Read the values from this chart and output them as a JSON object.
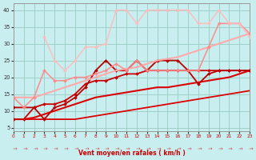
{
  "xlabel": "Vent moyen/en rafales ( km/h )",
  "xlim": [
    0,
    23
  ],
  "ylim": [
    4,
    42
  ],
  "yticks": [
    5,
    10,
    15,
    20,
    25,
    30,
    35,
    40
  ],
  "xticks": [
    0,
    1,
    2,
    3,
    4,
    5,
    6,
    7,
    8,
    9,
    10,
    11,
    12,
    13,
    14,
    15,
    16,
    17,
    18,
    19,
    20,
    21,
    22,
    23
  ],
  "background_color": "#c8eef0",
  "grid_color": "#a0d0c8",
  "lines": [
    {
      "x": [
        0,
        1,
        2,
        3,
        4,
        5,
        6,
        7,
        8,
        9,
        10,
        11,
        12,
        13,
        14,
        15,
        16,
        17,
        18,
        19,
        20,
        21,
        22,
        23
      ],
      "y": [
        7.5,
        7.5,
        7.5,
        7.5,
        7.5,
        7.5,
        7.5,
        8,
        8.5,
        9,
        9.5,
        10,
        10.5,
        11,
        11.5,
        12,
        12.5,
        13,
        13.5,
        14,
        14.5,
        15,
        15.5,
        16
      ],
      "color": "#dd0000",
      "lw": 1.3,
      "marker": null,
      "linestyle": "-",
      "alpha": 1.0
    },
    {
      "x": [
        0,
        1,
        2,
        3,
        4,
        5,
        6,
        7,
        8,
        9,
        10,
        11,
        12,
        13,
        14,
        15,
        16,
        17,
        18,
        19,
        20,
        21,
        22,
        23
      ],
      "y": [
        7.5,
        7.5,
        8,
        9,
        10,
        11,
        12,
        13,
        14,
        14.5,
        15,
        15.5,
        16,
        16.5,
        17,
        17,
        17.5,
        18,
        18.5,
        19,
        19.5,
        20,
        21,
        22
      ],
      "color": "#dd0000",
      "lw": 1.5,
      "marker": null,
      "linestyle": "-",
      "alpha": 1.0
    },
    {
      "x": [
        0,
        1,
        2,
        3,
        4,
        5,
        6,
        7,
        8,
        9,
        10,
        11,
        12,
        13,
        14,
        15,
        16,
        17,
        18,
        19,
        20,
        21,
        22,
        23
      ],
      "y": [
        7.5,
        7.5,
        11,
        12,
        12,
        13,
        15,
        18,
        19,
        19,
        20,
        21,
        21,
        22,
        22,
        22,
        22,
        22,
        22,
        22,
        22,
        22,
        22,
        22
      ],
      "color": "#cc0000",
      "lw": 1.3,
      "marker": "D",
      "markersize": 2.0,
      "linestyle": "-",
      "alpha": 1.0
    },
    {
      "x": [
        0,
        2,
        3,
        4,
        5,
        6,
        7,
        8,
        9,
        10,
        11,
        12,
        13,
        14,
        15,
        16,
        17,
        18,
        19,
        20,
        21,
        22,
        23
      ],
      "y": [
        11,
        11,
        7.5,
        11,
        12,
        14,
        17,
        22,
        25,
        22,
        22,
        25,
        22,
        25,
        25,
        25,
        22,
        18,
        21,
        22,
        22,
        22,
        22
      ],
      "color": "#bb0000",
      "lw": 1.3,
      "marker": "D",
      "markersize": 2.0,
      "linestyle": "-",
      "alpha": 1.0
    },
    {
      "x": [
        0,
        1,
        2,
        3,
        4,
        5,
        6,
        7,
        8,
        9,
        10,
        11,
        12,
        13,
        14,
        15,
        16,
        17,
        18,
        19,
        20,
        21,
        22,
        23
      ],
      "y": [
        14,
        14,
        14,
        15,
        16,
        17,
        18,
        19,
        20,
        21,
        22,
        22.5,
        23,
        24,
        25,
        25.5,
        26,
        27,
        28,
        29,
        30,
        31,
        32,
        33
      ],
      "color": "#ffaaaa",
      "lw": 1.5,
      "marker": null,
      "linestyle": "-",
      "alpha": 1.0
    },
    {
      "x": [
        0,
        1,
        2,
        3,
        4,
        5,
        6,
        7,
        8,
        9,
        10,
        11,
        12,
        13,
        14,
        15,
        16,
        17,
        18,
        19,
        20,
        21,
        22,
        23
      ],
      "y": [
        14,
        11,
        14,
        22,
        19,
        19,
        20,
        20,
        21,
        22,
        24,
        22,
        25,
        22,
        22,
        22,
        22,
        22,
        22,
        29,
        36,
        36,
        36,
        33
      ],
      "color": "#ff8888",
      "lw": 1.2,
      "marker": "D",
      "markersize": 2.0,
      "linestyle": "-",
      "alpha": 0.9
    },
    {
      "x": [
        3,
        4,
        5,
        6,
        7,
        8,
        9,
        10,
        11,
        12,
        13,
        14,
        15,
        16,
        17,
        18,
        19,
        20,
        21,
        22,
        23
      ],
      "y": [
        32,
        25,
        22,
        25,
        29,
        29,
        30,
        40,
        40,
        36,
        40,
        40,
        40,
        40,
        40,
        36,
        36,
        40,
        36,
        36,
        32
      ],
      "color": "#ffbbbb",
      "lw": 1.2,
      "marker": "D",
      "markersize": 2.0,
      "linestyle": "-",
      "alpha": 0.85
    }
  ]
}
